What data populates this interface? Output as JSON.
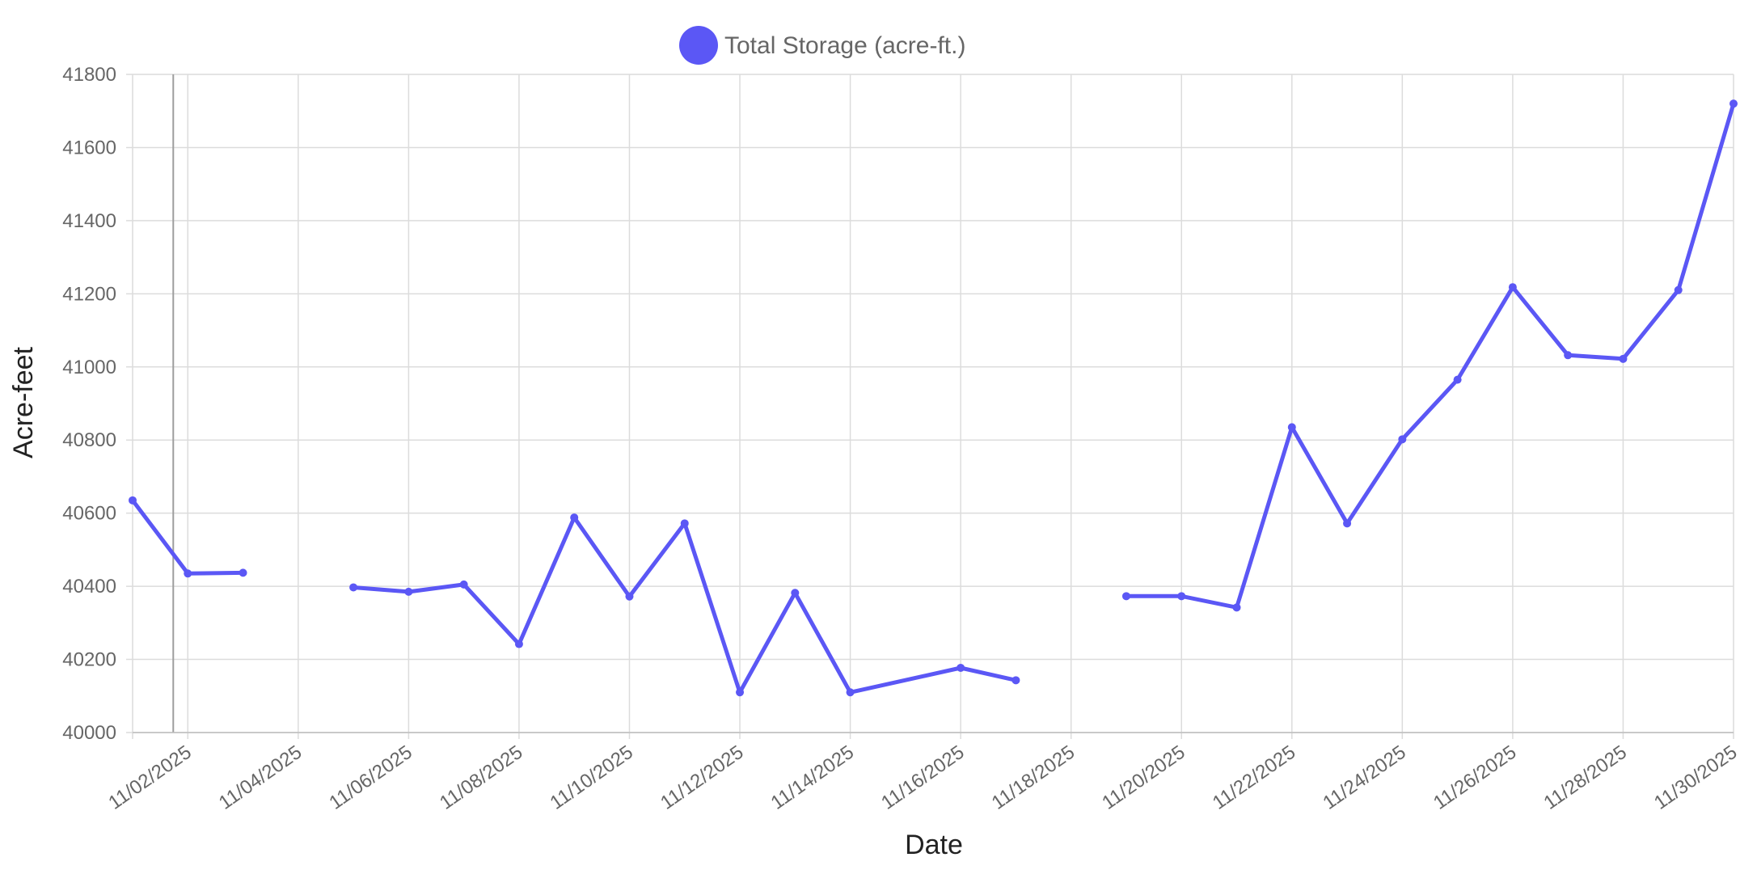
{
  "chart_data": {
    "type": "line",
    "xlabel": "Date",
    "ylabel": "Acre-feet",
    "ylim": [
      40000,
      41800
    ],
    "yticks": [
      40000,
      40200,
      40400,
      40600,
      40800,
      41000,
      41200,
      41400,
      41600,
      41800
    ],
    "xlim": [
      "11/01/2025",
      "11/30/2025"
    ],
    "xticks": [
      "11/02/2025",
      "11/04/2025",
      "11/06/2025",
      "11/08/2025",
      "11/10/2025",
      "11/12/2025",
      "11/14/2025",
      "11/16/2025",
      "11/18/2025",
      "11/20/2025",
      "11/22/2025",
      "11/24/2025",
      "11/26/2025",
      "11/28/2025",
      "11/30/2025"
    ],
    "grid": true,
    "legend": {
      "position": "top-center"
    },
    "series": [
      {
        "name": "Total Storage (acre-ft.)",
        "color": "#5b57f5",
        "points": [
          {
            "x": "11/01/2025",
            "y": 40635
          },
          {
            "x": "11/02/2025",
            "y": 40435
          },
          {
            "x": "11/03/2025",
            "y": 40437
          },
          {
            "x": "11/04/2025",
            "y": null
          },
          {
            "x": "11/05/2025",
            "y": 40397
          },
          {
            "x": "11/06/2025",
            "y": 40385
          },
          {
            "x": "11/07/2025",
            "y": 40405
          },
          {
            "x": "11/08/2025",
            "y": 40242
          },
          {
            "x": "11/09/2025",
            "y": 40588
          },
          {
            "x": "11/10/2025",
            "y": 40372
          },
          {
            "x": "11/11/2025",
            "y": 40572
          },
          {
            "x": "11/12/2025",
            "y": 40110
          },
          {
            "x": "11/13/2025",
            "y": 40382
          },
          {
            "x": "11/14/2025",
            "y": 40110
          },
          {
            "x": "11/16/2025",
            "y": 40177
          },
          {
            "x": "11/17/2025",
            "y": 40143
          },
          {
            "x": "11/18/2025",
            "y": null
          },
          {
            "x": "11/19/2025",
            "y": 40373
          },
          {
            "x": "11/20/2025",
            "y": 40373
          },
          {
            "x": "11/21/2025",
            "y": 40342
          },
          {
            "x": "11/22/2025",
            "y": 40835
          },
          {
            "x": "11/23/2025",
            "y": 40572
          },
          {
            "x": "11/24/2025",
            "y": 40802
          },
          {
            "x": "11/25/2025",
            "y": 40965
          },
          {
            "x": "11/26/2025",
            "y": 41218
          },
          {
            "x": "11/27/2025",
            "y": 41032
          },
          {
            "x": "11/28/2025",
            "y": 41022
          },
          {
            "x": "11/29/2025",
            "y": 41210
          },
          {
            "x": "11/30/2025",
            "y": 41720
          }
        ]
      }
    ]
  }
}
